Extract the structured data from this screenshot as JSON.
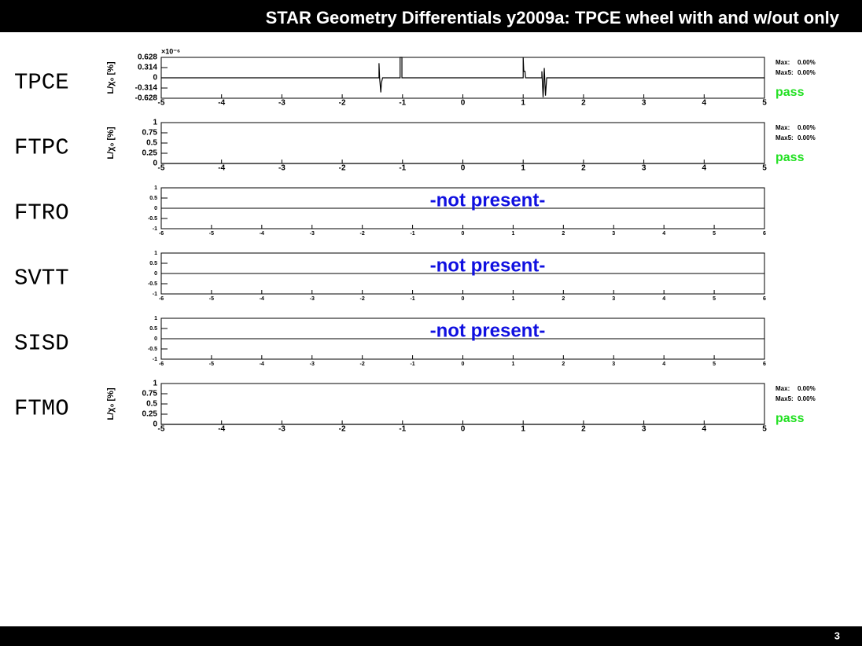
{
  "header": {
    "title": "STAR Geometry Differentials y2009a: TPCE wheel with and w/out only"
  },
  "page_number": "3",
  "chart_data": [
    {
      "type": "line",
      "label": "TPCE",
      "ylabel": "L/χ₀ [%]",
      "yexponent": "×10⁻⁶",
      "color": "#000000",
      "x": [
        -5,
        -1.39,
        -1.39,
        -1.38,
        -1.36,
        -1.35,
        -1.33,
        -1.04,
        -1.04,
        -1.01,
        -1.01,
        1.0,
        1.0,
        1.01,
        1.03,
        1.04,
        1.31,
        1.31,
        1.33,
        1.35,
        1.37,
        1.39,
        5
      ],
      "values": [
        0,
        0,
        0.45,
        0,
        -0.45,
        -0.15,
        0,
        0,
        0.628,
        0.628,
        0,
        0,
        0.628,
        0.2,
        0.2,
        0,
        0,
        0.2,
        -0.6,
        0.3,
        -0.55,
        0,
        0
      ],
      "xlim": [
        -5,
        5
      ],
      "xticks": [
        -5,
        -4,
        -3,
        -2,
        -1,
        0,
        1,
        2,
        3,
        4,
        5
      ],
      "ylim": [
        -0.628,
        0.628
      ],
      "yticks": [
        -0.628,
        -0.314,
        0,
        0.314,
        0.628
      ],
      "stats": [
        {
          "name": "Max:",
          "value": "0.00%"
        },
        {
          "name": "Max5:",
          "value": "0.00%"
        }
      ],
      "status": "pass"
    },
    {
      "type": "line",
      "label": "FTPC",
      "ylabel": "L/χ₀ [%]",
      "color": "#000000",
      "x": [
        -5,
        5
      ],
      "values": [
        0,
        0
      ],
      "xlim": [
        -5,
        5
      ],
      "xticks": [
        -5,
        -4,
        -3,
        -2,
        -1,
        0,
        1,
        2,
        3,
        4,
        5
      ],
      "ylim": [
        0,
        1
      ],
      "yticks": [
        0,
        0.25,
        0.5,
        0.75,
        1
      ],
      "stats": [
        {
          "name": "Max:",
          "value": "0.00%"
        },
        {
          "name": "Max5:",
          "value": "0.00%"
        }
      ],
      "status": "pass"
    },
    {
      "type": "line",
      "label": "FTRO",
      "annotation": "-not present-",
      "xlim": [
        -6,
        6
      ],
      "xticks": [
        -6,
        -5,
        -4,
        -3,
        -2,
        -1,
        0,
        1,
        2,
        3,
        4,
        5,
        6
      ],
      "ylim": [
        -1,
        1
      ],
      "yticks": [
        -1,
        -0.5,
        0,
        0.5,
        1
      ]
    },
    {
      "type": "line",
      "label": "SVTT",
      "annotation": "-not present-",
      "xlim": [
        -6,
        6
      ],
      "xticks": [
        -6,
        -5,
        -4,
        -3,
        -2,
        -1,
        0,
        1,
        2,
        3,
        4,
        5,
        6
      ],
      "ylim": [
        -1,
        1
      ],
      "yticks": [
        -1,
        -0.5,
        0,
        0.5,
        1
      ]
    },
    {
      "type": "line",
      "label": "SISD",
      "annotation": "-not present-",
      "xlim": [
        -6,
        6
      ],
      "xticks": [
        -6,
        -5,
        -4,
        -3,
        -2,
        -1,
        0,
        1,
        2,
        3,
        4,
        5,
        6
      ],
      "ylim": [
        -1,
        1
      ],
      "yticks": [
        -1,
        -0.5,
        0,
        0.5,
        1
      ]
    },
    {
      "type": "line",
      "label": "FTMO",
      "ylabel": "L/χ₀ [%]",
      "color": "#000000",
      "x": [
        -5,
        5
      ],
      "values": [
        0,
        0
      ],
      "xlim": [
        -5,
        5
      ],
      "xticks": [
        -5,
        -4,
        -3,
        -2,
        -1,
        0,
        1,
        2,
        3,
        4,
        5
      ],
      "ylim": [
        0,
        1
      ],
      "yticks": [
        0,
        0.25,
        0.5,
        0.75,
        1
      ],
      "stats": [
        {
          "name": "Max:",
          "value": "0.00%"
        },
        {
          "name": "Max5:",
          "value": "0.00%"
        }
      ],
      "status": "pass"
    }
  ]
}
